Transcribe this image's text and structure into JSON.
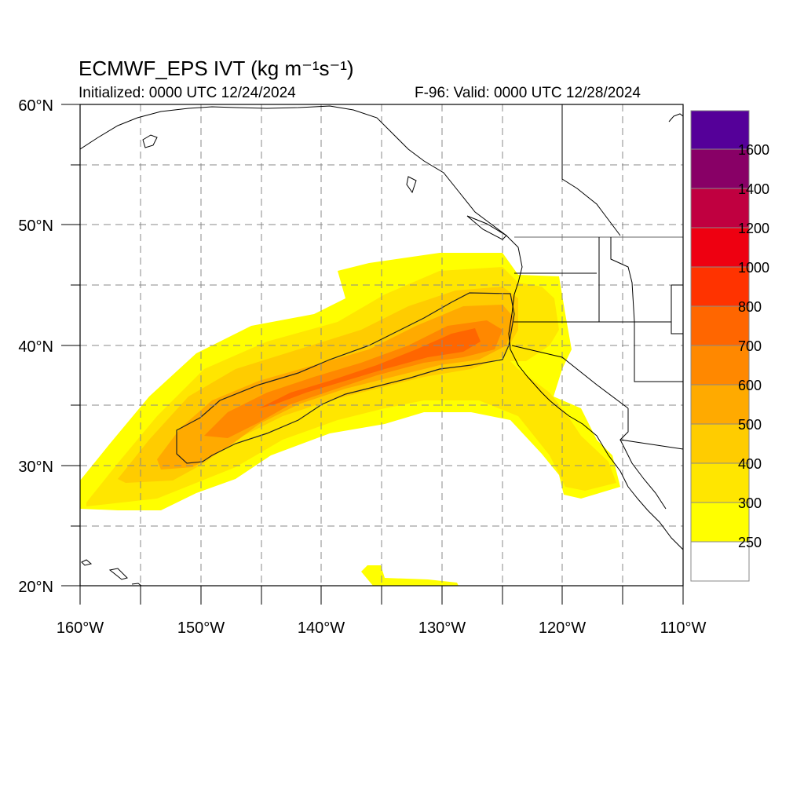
{
  "title": "ECMWF_EPS IVT (kg m⁻¹s⁻¹)",
  "initialized": "Initialized: 0000 UTC 12/24/2024",
  "valid": "F-96: Valid: 0000 UTC 12/28/2024",
  "map": {
    "lon_range": [
      -160,
      -110
    ],
    "lat_range": [
      20,
      60
    ],
    "lon_labels": [
      "160°W",
      "150°W",
      "140°W",
      "130°W",
      "120°W",
      "110°W"
    ],
    "lat_labels": [
      "20°N",
      "30°N",
      "40°N",
      "50°N",
      "60°N"
    ],
    "grid": "dashed every 5 degrees"
  },
  "colorbar": {
    "levels": [
      "250",
      "300",
      "400",
      "500",
      "600",
      "700",
      "800",
      "1000",
      "1200",
      "1400",
      "1600"
    ],
    "colors": [
      "#ffffff",
      "#ffff00",
      "#ffe600",
      "#ffcc00",
      "#ffaa00",
      "#ff8800",
      "#ff6600",
      "#ff3300",
      "#ee0011",
      "#c00040",
      "#880066",
      "#550099"
    ]
  },
  "ivt_field": {
    "description_colors": {
      "c250": "#ffff00",
      "c300": "#ffe600",
      "c400": "#ffcc00",
      "c500": "#ffaa00",
      "c600": "#ff8800",
      "c700": "#ff6600"
    }
  }
}
